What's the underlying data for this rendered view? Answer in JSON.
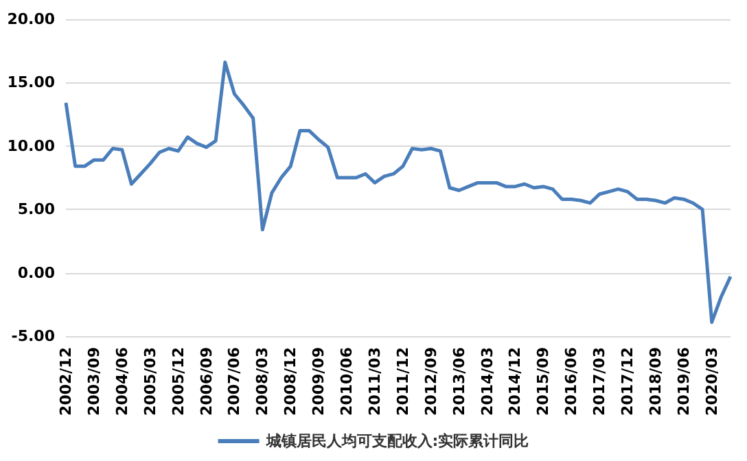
{
  "chart_data": {
    "type": "line",
    "categories": [
      "2002/12",
      null,
      null,
      "2003/09",
      null,
      null,
      "2004/06",
      null,
      null,
      "2005/03",
      null,
      null,
      "2005/12",
      null,
      null,
      "2006/09",
      null,
      null,
      "2007/06",
      null,
      null,
      "2008/03",
      null,
      null,
      "2008/12",
      null,
      null,
      "2009/09",
      null,
      null,
      "2010/06",
      null,
      null,
      "2011/03",
      null,
      null,
      "2011/12",
      null,
      null,
      "2012/09",
      null,
      null,
      "2013/06",
      null,
      null,
      "2014/03",
      null,
      null,
      "2014/12",
      null,
      null,
      "2015/09",
      null,
      null,
      "2016/06",
      null,
      null,
      "2017/03",
      null,
      null,
      "2017/12",
      null,
      null,
      "2018/09",
      null,
      null,
      "2019/06",
      null,
      null,
      "2020/03",
      null,
      null
    ],
    "series": [
      {
        "name": "城镇居民人均可支配收入:实际累计同比",
        "color": "#4a7ebb",
        "values": [
          13.4,
          8.4,
          8.4,
          8.9,
          8.9,
          9.8,
          9.7,
          7.0,
          7.8,
          8.6,
          9.5,
          9.8,
          9.6,
          10.7,
          10.2,
          9.9,
          10.4,
          16.6,
          14.1,
          13.2,
          12.2,
          3.4,
          6.3,
          7.5,
          8.4,
          11.2,
          11.2,
          10.5,
          9.9,
          7.5,
          7.5,
          7.5,
          7.8,
          7.1,
          7.6,
          7.8,
          8.4,
          9.8,
          9.7,
          9.8,
          9.6,
          6.7,
          6.5,
          6.8,
          7.1,
          7.1,
          7.1,
          6.8,
          6.8,
          7.0,
          6.7,
          6.8,
          6.6,
          5.8,
          5.8,
          5.7,
          5.5,
          6.2,
          6.4,
          6.6,
          6.4,
          5.8,
          5.8,
          5.7,
          5.5,
          5.9,
          5.8,
          5.5,
          5.0,
          -3.9,
          -1.9,
          -0.3
        ]
      }
    ],
    "ylim": [
      -5,
      20
    ],
    "yticks": [
      {
        "value": -5,
        "label": "-5.00"
      },
      {
        "value": 0,
        "label": "0.00"
      },
      {
        "value": 5,
        "label": "5.00"
      },
      {
        "value": 10,
        "label": "10.00"
      },
      {
        "value": 15,
        "label": "15.00"
      },
      {
        "value": 20,
        "label": "20.00"
      }
    ],
    "grid": "y",
    "legend": "bottom",
    "marker": "none",
    "line_style": "solid"
  }
}
